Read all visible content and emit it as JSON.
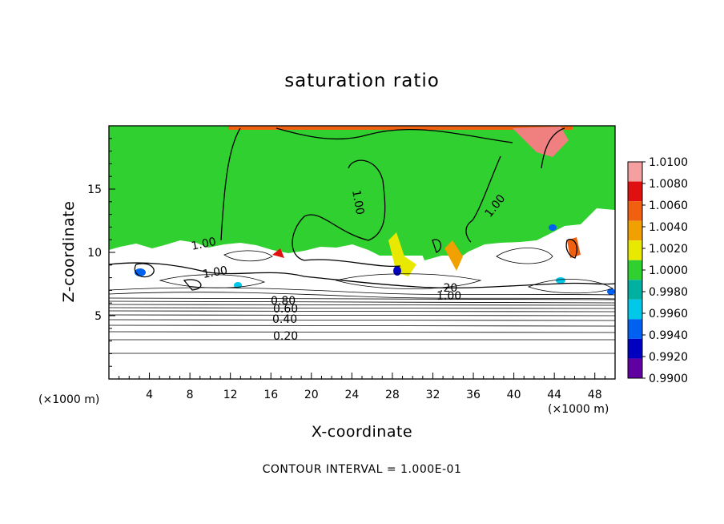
{
  "chart_data": {
    "type": "heatmap",
    "title": "saturation ratio",
    "xlabel": "X-coordinate",
    "ylabel": "Z-coordinate",
    "x_unit": "(×1000 m)",
    "xlim": [
      0,
      50
    ],
    "ylim": [
      0,
      20
    ],
    "x_ticks": [
      4,
      8,
      12,
      16,
      20,
      24,
      28,
      32,
      36,
      40,
      44,
      48
    ],
    "y_ticks": [
      5,
      10,
      15
    ],
    "colorbar": {
      "levels": [
        "1.0100",
        "1.0080",
        "1.0060",
        "1.0040",
        "1.0020",
        "1.0000",
        "0.9980",
        "0.9960",
        "0.9940",
        "0.9920",
        "0.9900"
      ],
      "colors": [
        "#f4a0a0",
        "#e01010",
        "#f06010",
        "#f0a000",
        "#e8e800",
        "#30d030",
        "#00b0a0",
        "#00c8e8",
        "#0060f0",
        "#0000c0",
        "#6000a0"
      ]
    },
    "contour_labels": [
      "1.00",
      "1.00",
      "1.00",
      "1.00",
      "1.00",
      "0.80",
      "0.60",
      "0.40",
      "0.20",
      ".20"
    ],
    "footer": "CONTOUR INTERVAL = 1.000E-01"
  }
}
